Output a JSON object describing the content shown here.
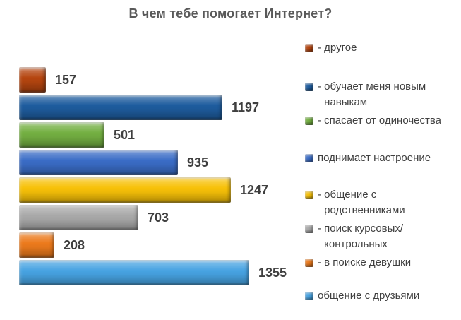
{
  "chart_data": {
    "type": "bar",
    "orientation": "horizontal",
    "title": "В чем тебе помогает Интернет?",
    "grid": false,
    "axes_visible": false,
    "value_labels": true,
    "xlim": [
      0,
      1400
    ],
    "legend_position": "right",
    "categories": [
      "другое",
      "обучает меня новым навыкам",
      "спасает от одиночества",
      "поднимает настроение",
      "общение с родственниками",
      "поиск курсовых/контрольных",
      "в поиске девушки",
      "общение с друзьями"
    ],
    "values": [
      157,
      1197,
      501,
      935,
      1247,
      703,
      208,
      1355
    ],
    "colors": [
      "#B5450F",
      "#1E5C9E",
      "#73AF41",
      "#3A6CC6",
      "#F7C108",
      "#A9A9A9",
      "#EC7A1C",
      "#47A3E2"
    ],
    "legend": [
      {
        "prefix": "- ",
        "label": "другое",
        "color": "#B5450F"
      },
      {
        "prefix": "- ",
        "label": "обучает меня новым навыкам",
        "color": "#1E5C9E"
      },
      {
        "prefix": "- ",
        "label": "спасает от одиночества",
        "color": "#73AF41"
      },
      {
        "prefix": "",
        "label": "поднимает настроение",
        "color": "#3A6CC6"
      },
      {
        "prefix": "- ",
        "label": "общение с родственниками",
        "color": "#F7C108"
      },
      {
        "prefix": "- ",
        "label": "поиск курсовых/контрольных",
        "color": "#A9A9A9"
      },
      {
        "prefix": "- ",
        "label": "в поиске девушки",
        "color": "#EC7A1C"
      },
      {
        "prefix": "",
        "label": "общение с друзьями",
        "color": "#47A3E2"
      }
    ],
    "text_colors": {
      "title": "#595959",
      "value_labels": "#3F3F3F",
      "legend": "#404040"
    }
  }
}
